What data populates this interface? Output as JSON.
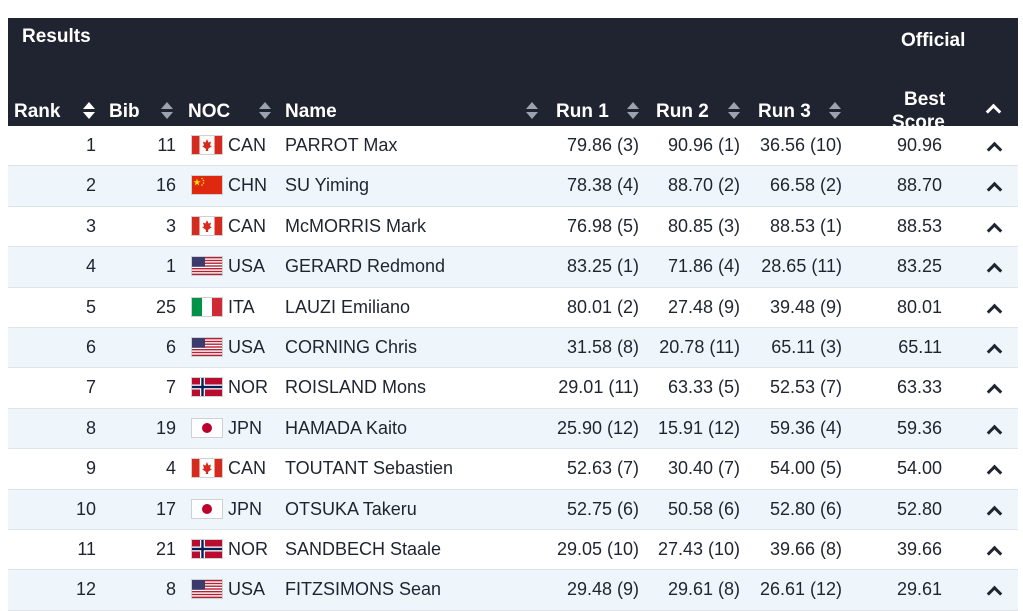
{
  "header": {
    "title": "Results",
    "official": "Official",
    "columns": {
      "rank": "Rank",
      "bib": "Bib",
      "noc": "NOC",
      "name": "Name",
      "run1": "Run 1",
      "run2": "Run 2",
      "run3": "Run 3",
      "best_line1": "Best",
      "best_line2": "Score"
    }
  },
  "rows": [
    {
      "rank": "1",
      "bib": "11",
      "noc": "CAN",
      "flag": "flag-canada",
      "name": "PARROT Max",
      "run1": "79.86 (3)",
      "run2": "90.96 (1)",
      "run3": "36.56 (10)",
      "best": "90.96"
    },
    {
      "rank": "2",
      "bib": "16",
      "noc": "CHN",
      "flag": "flag-china",
      "name": "SU Yiming",
      "run1": "78.38 (4)",
      "run2": "88.70 (2)",
      "run3": "66.58 (2)",
      "best": "88.70"
    },
    {
      "rank": "3",
      "bib": "3",
      "noc": "CAN",
      "flag": "flag-canada",
      "name": "McMORRIS Mark",
      "run1": "76.98 (5)",
      "run2": "80.85 (3)",
      "run3": "88.53 (1)",
      "best": "88.53"
    },
    {
      "rank": "4",
      "bib": "1",
      "noc": "USA",
      "flag": "flag-usa",
      "name": "GERARD Redmond",
      "run1": "83.25 (1)",
      "run2": "71.86 (4)",
      "run3": "28.65 (11)",
      "best": "83.25"
    },
    {
      "rank": "5",
      "bib": "25",
      "noc": "ITA",
      "flag": "flag-italy",
      "name": "LAUZI Emiliano",
      "run1": "80.01 (2)",
      "run2": "27.48 (9)",
      "run3": "39.48 (9)",
      "best": "80.01"
    },
    {
      "rank": "6",
      "bib": "6",
      "noc": "USA",
      "flag": "flag-usa",
      "name": "CORNING Chris",
      "run1": "31.58 (8)",
      "run2": "20.78 (11)",
      "run3": "65.11 (3)",
      "best": "65.11"
    },
    {
      "rank": "7",
      "bib": "7",
      "noc": "NOR",
      "flag": "flag-norway",
      "name": "ROISLAND Mons",
      "run1": "29.01 (11)",
      "run2": "63.33 (5)",
      "run3": "52.53 (7)",
      "best": "63.33"
    },
    {
      "rank": "8",
      "bib": "19",
      "noc": "JPN",
      "flag": "flag-japan",
      "name": "HAMADA Kaito",
      "run1": "25.90 (12)",
      "run2": "15.91 (12)",
      "run3": "59.36 (4)",
      "best": "59.36"
    },
    {
      "rank": "9",
      "bib": "4",
      "noc": "CAN",
      "flag": "flag-canada",
      "name": "TOUTANT Sebastien",
      "run1": "52.63 (7)",
      "run2": "30.40 (7)",
      "run3": "54.00 (5)",
      "best": "54.00"
    },
    {
      "rank": "10",
      "bib": "17",
      "noc": "JPN",
      "flag": "flag-japan",
      "name": "OTSUKA Takeru",
      "run1": "52.75 (6)",
      "run2": "50.58 (6)",
      "run3": "52.80 (6)",
      "best": "52.80"
    },
    {
      "rank": "11",
      "bib": "21",
      "noc": "NOR",
      "flag": "flag-norway",
      "name": "SANDBECH Staale",
      "run1": "29.05 (10)",
      "run2": "27.43 (10)",
      "run3": "39.66 (8)",
      "best": "39.66"
    },
    {
      "rank": "12",
      "bib": "8",
      "noc": "USA",
      "flag": "flag-usa",
      "name": "FITZSIMONS Sean",
      "run1": "29.48 (9)",
      "run2": "29.61 (8)",
      "run3": "26.61 (12)",
      "best": "29.61"
    }
  ]
}
